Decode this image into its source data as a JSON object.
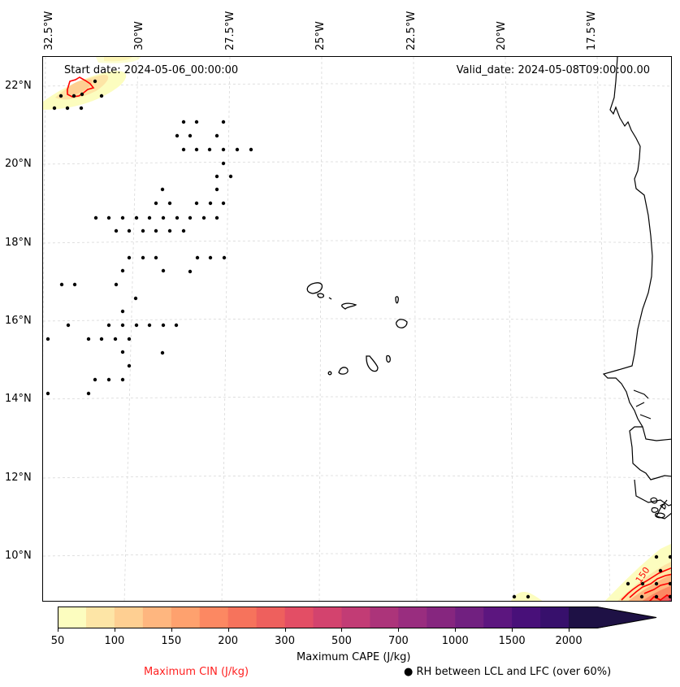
{
  "map": {
    "start_date": "Start date: 2024-05-06_00:00:00",
    "valid_date": "Valid_date: 2024-05-08T09:00:00.00",
    "lon_labels": [
      "32.5°W",
      "30°W",
      "27.5°W",
      "25°W",
      "22.5°W",
      "20°W",
      "17.5°W"
    ],
    "lat_labels": [
      "22°N",
      "20°N",
      "18°N",
      "16°N",
      "14°N",
      "12°N",
      "10°N"
    ],
    "contour_label": "150",
    "dot_legend_symbol": "●"
  },
  "colorbar": {
    "title": "Maximum CAPE (J/kg)",
    "tick_labels": [
      "50",
      "100",
      "150",
      "200",
      "300",
      "500",
      "700",
      "1000",
      "1500",
      "2000"
    ],
    "levels": [
      50,
      75,
      100,
      125,
      150,
      175,
      200,
      250,
      300,
      400,
      500,
      600,
      700,
      850,
      1000,
      1250,
      1500,
      1750,
      2000
    ],
    "colors": [
      "#fcfdbf",
      "#fde5a6",
      "#fecf92",
      "#feb67f",
      "#fea16e",
      "#fc8862",
      "#f6735c",
      "#ee605d",
      "#e34e65",
      "#d3436e",
      "#c23c75",
      "#ac347a",
      "#992d7f",
      "#86267f",
      "#712080",
      "#5c167f",
      "#481079",
      "#37106c",
      "#1e1145"
    ],
    "extend": "max"
  },
  "legend": {
    "cin_label": "Maximum CIN (J/kg)",
    "cin_color": "#ff0000",
    "rh_label": "RH between LCL and LFC (over 60%)"
  },
  "chart_data": {
    "type": "heatmap",
    "title": "",
    "projection": "map (North Atlantic / West Africa)",
    "lon_range": [
      "33°W",
      "15.5°W"
    ],
    "lat_range": [
      "9°N",
      "22.5°N"
    ],
    "fields": [
      {
        "name": "Maximum CAPE (J/kg)",
        "style": "filled contours",
        "colormap": "magma_r"
      },
      {
        "name": "Maximum CIN (J/kg)",
        "style": "red contour lines",
        "labeled_contour": 150
      },
      {
        "name": "RH between LCL and LFC (over 60%)",
        "style": "black dots"
      }
    ],
    "notable_regions": [
      {
        "location": "NW corner ~22°N 32°W",
        "cape": "50-150",
        "cin_contour": true,
        "rh_dots": true
      },
      {
        "location": "SE corner ~9-10°N 15.5-16°W",
        "cape": "50-500",
        "cin_contour": true,
        "rh_dots": true
      },
      {
        "location": "~9°N 19.5°W",
        "cape": "50-75",
        "rh_dots": true
      },
      {
        "location": "central-west Atlantic 14-21°N 25-33°W",
        "rh_dots": true
      }
    ],
    "grid": true
  }
}
